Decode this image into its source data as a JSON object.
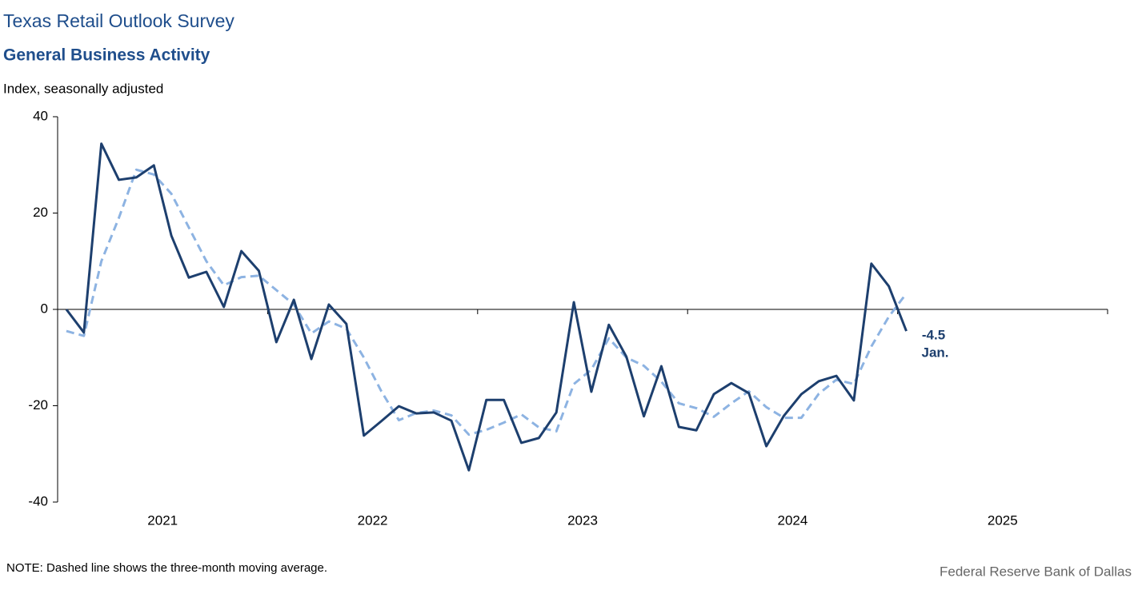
{
  "chart_data": {
    "type": "line",
    "suptitle": "Texas Retail Outlook Survey",
    "title": "General Business Activity",
    "ylabel": "Index, seasonally adjusted",
    "note": "NOTE: Dashed line shows the three-month  moving average.",
    "source": "Federal Reserve Bank of Dallas",
    "annotation": "Jan.",
    "year_labels": [
      "2021",
      "2022",
      "2023",
      "2024",
      "2025"
    ],
    "categories": [
      null,
      null,
      null,
      null,
      null,
      null,
      null,
      null,
      null,
      null,
      null,
      null,
      null,
      null,
      null,
      null,
      null,
      null,
      null,
      null,
      null,
      null,
      null,
      null,
      null,
      null,
      null,
      null,
      null,
      null,
      null,
      null,
      null,
      null,
      null,
      null,
      null,
      null,
      null,
      null,
      null,
      null,
      null,
      null,
      null,
      null,
      null,
      null,
      null
    ],
    "ylim": [
      -40,
      40
    ],
    "yticks": [
      -40,
      -20,
      0,
      20,
      40
    ],
    "series": [
      {
        "name": "Index",
        "color": "#1d3f6e",
        "dashed": false,
        "values": [
          0,
          -4.8,
          34.4,
          26.9,
          27.4,
          29.9,
          15.3,
          6.6,
          7.8,
          0.5,
          12.1,
          8.0,
          -6.8,
          2.0,
          -10.3,
          1.0,
          -3.0,
          -26.2,
          -23.2,
          -20.1,
          -21.6,
          -21.4,
          -23.1,
          -33.4,
          -18.8,
          -18.8,
          -27.7,
          -26.7,
          -21.4,
          1.5,
          -17.1,
          -3.2,
          -9.8,
          -22.2,
          -11.8,
          -24.4,
          -25.1,
          -17.6,
          -15.3,
          -17.4,
          -28.4,
          -22.1,
          -17.6,
          -14.9,
          -13.8,
          -18.9,
          9.5,
          4.8,
          -4.5
        ]
      },
      {
        "name": "Three-month moving average",
        "color": "#8db3e2",
        "dashed": true,
        "values": [
          -4.5,
          -5.5,
          10,
          19,
          29,
          28,
          24,
          17,
          10,
          5,
          6.7,
          7,
          4,
          1,
          -5,
          -2.5,
          -4,
          -10,
          -17,
          -23,
          -21.5,
          -21,
          -22,
          -26,
          -25,
          -23.5,
          -21.8,
          -24.5,
          -25.3,
          -15.5,
          -12.5,
          -6,
          -10,
          -11.7,
          -15,
          -19.5,
          -20.5,
          -22.3,
          -19.5,
          -17,
          -20.3,
          -22.5,
          -22.5,
          -17.5,
          -14.6,
          -15.5,
          -7.7,
          -1.5,
          3.3
        ]
      }
    ]
  }
}
